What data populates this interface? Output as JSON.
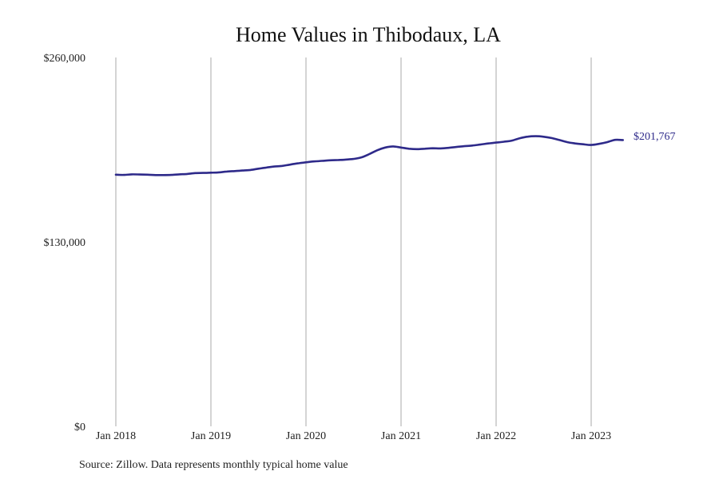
{
  "chart_data": {
    "type": "line",
    "title": "Home Values in Thibodaux, LA",
    "xlabel": "",
    "ylabel": "",
    "ylim": [
      0,
      260000
    ],
    "y_ticks": [
      {
        "value": 0,
        "label": "$0"
      },
      {
        "value": 130000,
        "label": "$130,000"
      },
      {
        "value": 260000,
        "label": "$260,000"
      }
    ],
    "x_ticks": [
      "Jan 2018",
      "Jan 2019",
      "Jan 2020",
      "Jan 2021",
      "Jan 2022",
      "Jan 2023"
    ],
    "grid": "vertical",
    "legend": "none",
    "series": [
      {
        "color": "#2e2a8a",
        "x": [
          "2018-01",
          "2018-02",
          "2018-03",
          "2018-04",
          "2018-05",
          "2018-06",
          "2018-07",
          "2018-08",
          "2018-09",
          "2018-10",
          "2018-11",
          "2018-12",
          "2019-01",
          "2019-02",
          "2019-03",
          "2019-04",
          "2019-05",
          "2019-06",
          "2019-07",
          "2019-08",
          "2019-09",
          "2019-10",
          "2019-11",
          "2019-12",
          "2020-01",
          "2020-02",
          "2020-03",
          "2020-04",
          "2020-05",
          "2020-06",
          "2020-07",
          "2020-08",
          "2020-09",
          "2020-10",
          "2020-11",
          "2020-12",
          "2021-01",
          "2021-02",
          "2021-03",
          "2021-04",
          "2021-05",
          "2021-06",
          "2021-07",
          "2021-08",
          "2021-09",
          "2021-10",
          "2021-11",
          "2021-12",
          "2022-01",
          "2022-02",
          "2022-03",
          "2022-04",
          "2022-05",
          "2022-06",
          "2022-07",
          "2022-08",
          "2022-09",
          "2022-10",
          "2022-11",
          "2022-12",
          "2023-01",
          "2023-02",
          "2023-03",
          "2023-04",
          "2023-05"
        ],
        "values": [
          177400,
          177200,
          177600,
          177500,
          177400,
          177100,
          177100,
          177200,
          177600,
          177900,
          178500,
          178600,
          178800,
          179000,
          179600,
          179900,
          180300,
          180700,
          181600,
          182400,
          183100,
          183600,
          184500,
          185400,
          186100,
          186700,
          187100,
          187500,
          187700,
          188000,
          188500,
          189600,
          191900,
          194600,
          196500,
          197300,
          196500,
          195700,
          195400,
          195700,
          196000,
          195900,
          196300,
          196900,
          197500,
          197900,
          198600,
          199400,
          200000,
          200600,
          201400,
          203100,
          204200,
          204500,
          204100,
          203200,
          201800,
          200300,
          199400,
          198800,
          198300,
          199100,
          200300,
          201900,
          201800
        ],
        "end_label": "$201,767"
      }
    ]
  },
  "source_note": "Source: Zillow. Data represents monthly typical home value"
}
